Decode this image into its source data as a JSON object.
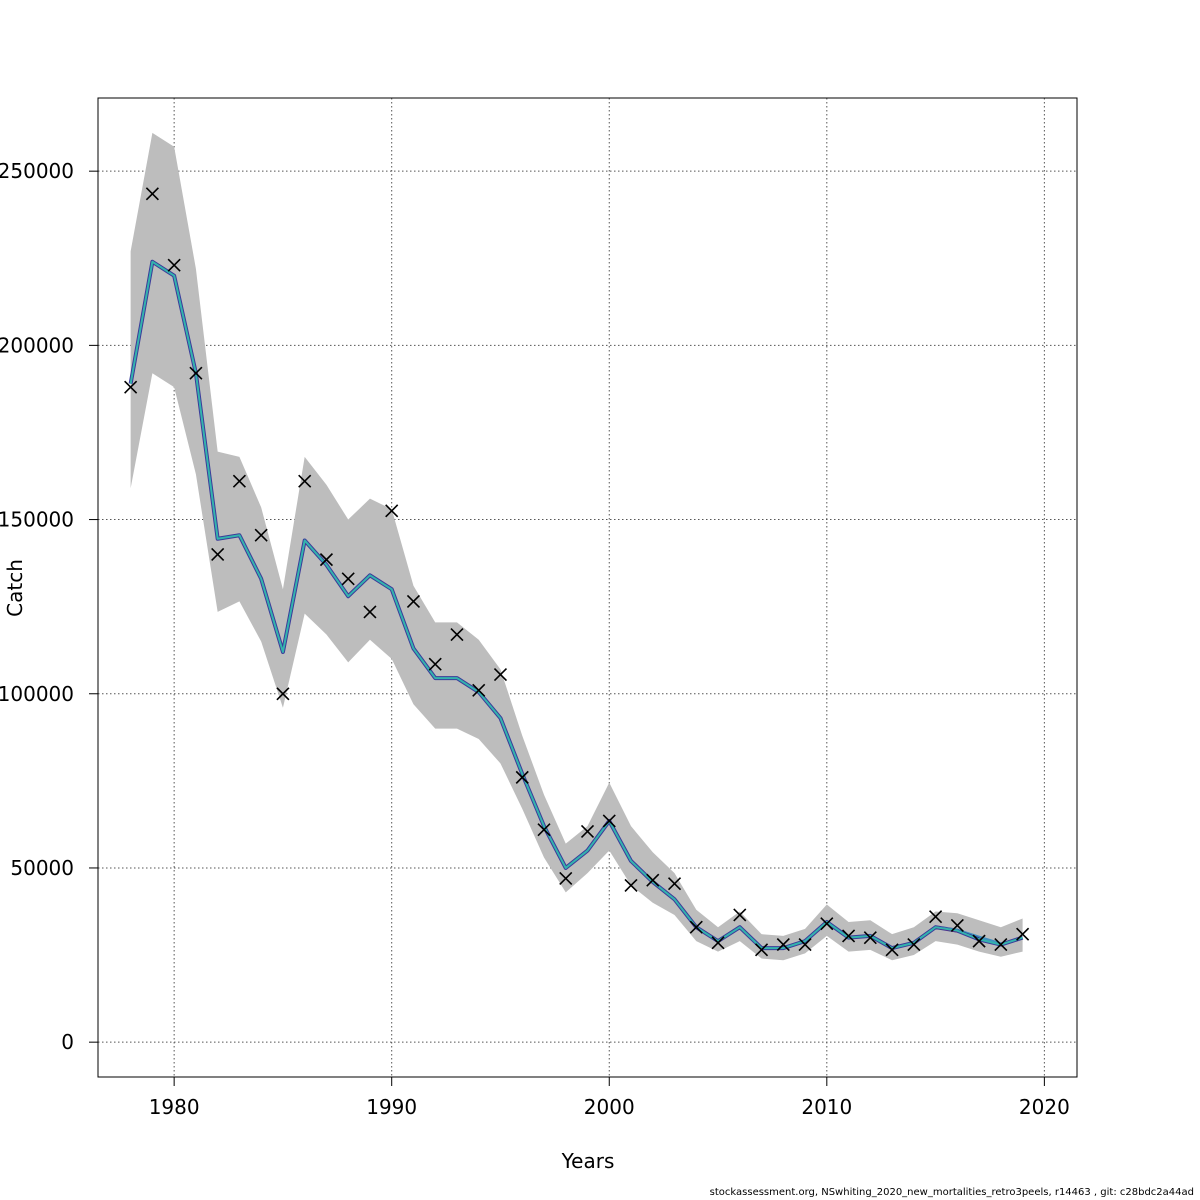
{
  "chart_data": {
    "type": "line",
    "xlabel": "Years",
    "ylabel": "Catch",
    "xlim": [
      1976.5,
      2021.5
    ],
    "ylim": [
      -10000,
      271000
    ],
    "x_ticks": [
      1980,
      1990,
      2000,
      2010,
      2020
    ],
    "y_ticks": [
      0,
      50000,
      100000,
      150000,
      200000,
      250000
    ],
    "x_tick_labels": [
      "1980",
      "1990",
      "2000",
      "2010",
      "2020"
    ],
    "y_tick_labels": [
      "0",
      "50000",
      "100000",
      "150000",
      "200000",
      "250000"
    ],
    "grid": true,
    "years": [
      1978,
      1979,
      1980,
      1981,
      1982,
      1983,
      1984,
      1985,
      1986,
      1987,
      1988,
      1989,
      1990,
      1991,
      1992,
      1993,
      1994,
      1995,
      1996,
      1997,
      1998,
      1999,
      2000,
      2001,
      2002,
      2003,
      2004,
      2005,
      2006,
      2007,
      2008,
      2009,
      2010,
      2011,
      2012,
      2013,
      2014,
      2015,
      2016,
      2017,
      2018,
      2019
    ],
    "observed_catch": [
      188000,
      243500,
      223000,
      192000,
      140000,
      161000,
      145500,
      100000,
      161000,
      138500,
      133000,
      123500,
      152500,
      126500,
      108500,
      117000,
      101000,
      105500,
      76000,
      61000,
      47000,
      60500,
      63500,
      45000,
      46500,
      45500,
      33000,
      28500,
      36500,
      26500,
      28000,
      28000,
      34000,
      30500,
      30000,
      26500,
      28000,
      36000,
      33500,
      29000,
      28000,
      31000
    ],
    "estimate": [
      189000,
      224000,
      220000,
      192000,
      144500,
      145500,
      133000,
      112000,
      144000,
      137000,
      128000,
      134000,
      130000,
      113000,
      104500,
      104500,
      100500,
      93000,
      77000,
      62000,
      50000,
      55000,
      63500,
      52000,
      46000,
      41000,
      33000,
      29000,
      33000,
      27000,
      27000,
      29000,
      34500,
      30000,
      30500,
      27000,
      28500,
      33000,
      32000,
      29500,
      28000,
      30000
    ],
    "ci_upper": [
      227000,
      261000,
      257000,
      222000,
      169500,
      168000,
      153500,
      130000,
      168000,
      160000,
      150000,
      156000,
      153000,
      131000,
      120500,
      120500,
      115500,
      107000,
      88000,
      71000,
      57000,
      62000,
      74500,
      62000,
      54500,
      48500,
      38000,
      33000,
      37500,
      31000,
      30500,
      32500,
      39500,
      34500,
      35000,
      31000,
      33000,
      37500,
      37000,
      35000,
      33000,
      35500
    ],
    "ci_lower": [
      159000,
      192000,
      188000,
      163000,
      123500,
      126500,
      115000,
      96000,
      123000,
      117000,
      109000,
      115500,
      110000,
      97000,
      90000,
      90000,
      87000,
      80000,
      67000,
      53000,
      43000,
      48500,
      55000,
      45000,
      40000,
      36500,
      29000,
      26000,
      29000,
      24000,
      23500,
      25500,
      30500,
      26000,
      26500,
      23500,
      25000,
      29000,
      28000,
      26000,
      24500,
      26000
    ],
    "retro_peels": [
      {
        "color": "#3f8fbf",
        "years": [
          2015,
          2016,
          2017,
          2018
        ],
        "values": [
          33000,
          32200,
          30200,
          28300
        ]
      },
      {
        "color": "#2c2c90",
        "years": [
          2015,
          2016,
          2017
        ],
        "values": [
          33000,
          32000,
          29700
        ]
      },
      {
        "color": "#5a2d82",
        "years": [
          2015,
          2016
        ],
        "values": [
          33000,
          31800
        ]
      }
    ],
    "colors": {
      "band": "#bdbdbd",
      "estimate_outer": "#3b3b9a",
      "estimate_inner": "#33b3ad",
      "observed": "#000000",
      "grid": "#555555",
      "frame": "#000000"
    }
  },
  "footer": {
    "text": "stockassessment.org, NSwhiting_2020_new_mortalities_retro3peels, r14463 , git: c28bdc2a44ad"
  }
}
